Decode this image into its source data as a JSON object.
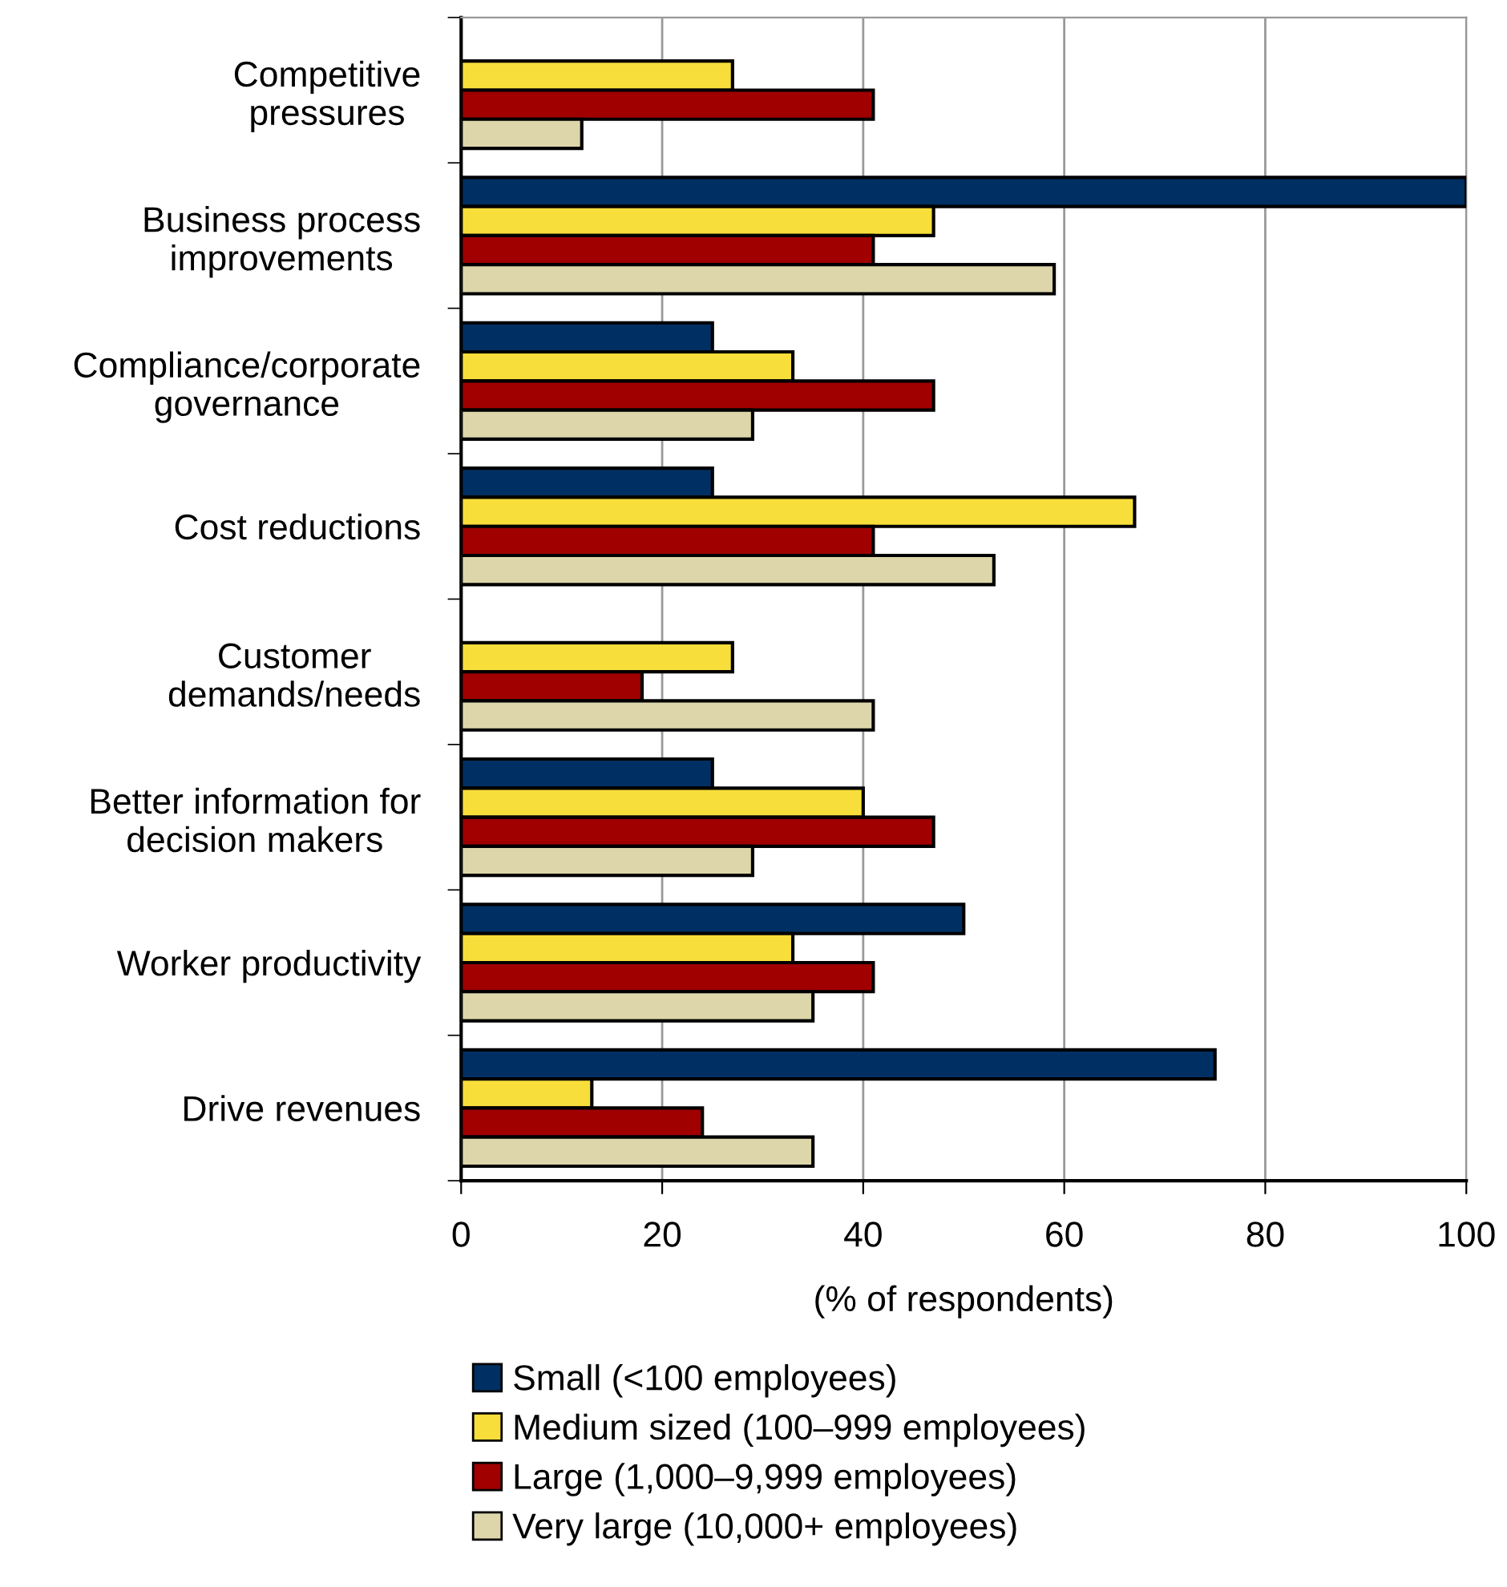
{
  "chart_data": {
    "type": "bar",
    "orientation": "horizontal",
    "xlabel": "(% of respondents)",
    "categories": [
      "Competitive\npressures",
      "Business process\nimprovements",
      "Compliance/corporate\ngovernance",
      "Cost reductions",
      "Customer\ndemands/needs",
      "Better information for\ndecision makers",
      "Worker productivity",
      "Drive revenues"
    ],
    "series": [
      {
        "name": "Small (<100 employees)",
        "color": "#003063",
        "values": [
          null,
          100,
          25,
          25,
          null,
          25,
          50,
          75
        ]
      },
      {
        "name": "Medium sized (100–999 employees)",
        "color": "#f8de3a",
        "values": [
          27,
          47,
          33,
          67,
          27,
          40,
          33,
          13
        ]
      },
      {
        "name": "Large (1,000–9,999 employees)",
        "color": "#a00000",
        "values": [
          41,
          41,
          47,
          41,
          18,
          47,
          41,
          24
        ]
      },
      {
        "name": "Very large (10,000+ employees)",
        "color": "#ddd6aa",
        "values": [
          12,
          59,
          29,
          53,
          41,
          29,
          35,
          35
        ]
      }
    ],
    "xlim": [
      0,
      100
    ],
    "xticks": [
      0,
      20,
      40,
      60,
      80,
      100
    ],
    "grid": "x",
    "legend": "bottom"
  }
}
